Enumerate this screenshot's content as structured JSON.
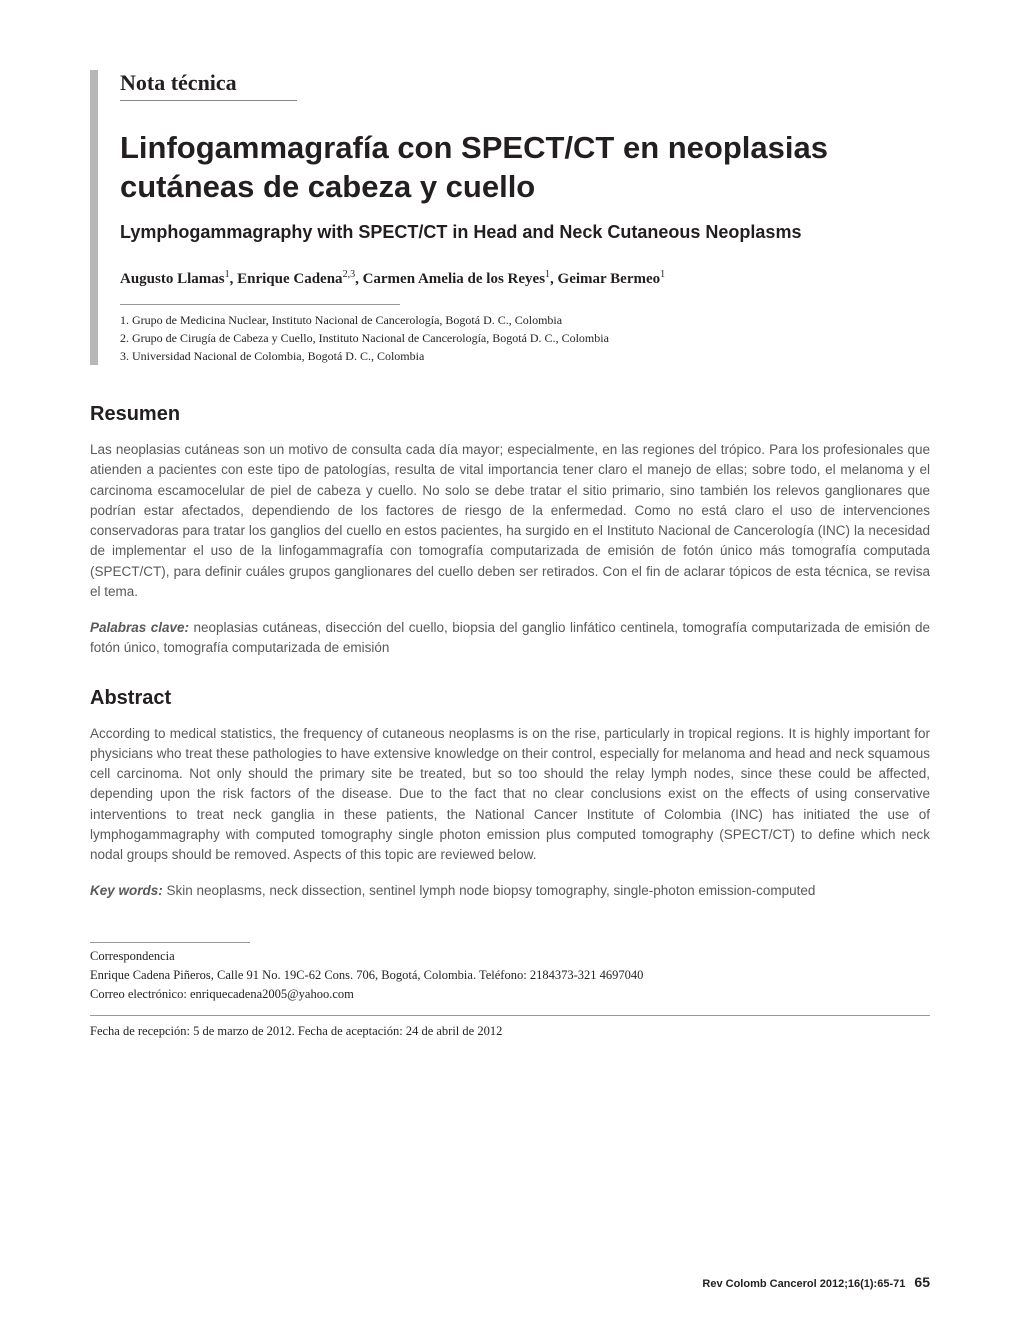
{
  "section_label": "Nota técnica",
  "title": "Linfogammagrafía con SPECT/CT en neoplasias cutáneas de cabeza y cuello",
  "subtitle": "Lymphogammagraphy with SPECT/CT in Head and Neck Cutaneous Neoplasms",
  "authors_html": "Augusto Llamas<sup>1</sup>, Enrique Cadena<sup>2,3</sup>, Carmen Amelia de los Reyes<sup>1</sup>, Geimar Bermeo<sup>1</sup>",
  "affiliations": [
    "1.  Grupo de Medicina Nuclear, Instituto Nacional de Cancerología, Bogotá D. C., Colombia",
    "2.  Grupo de Cirugía de Cabeza y Cuello, Instituto Nacional de Cancerología, Bogotá D. C., Colombia",
    "3.  Universidad Nacional de Colombia, Bogotá D. C., Colombia"
  ],
  "resumen": {
    "heading": "Resumen",
    "body": "Las neoplasias cutáneas son un motivo de consulta cada día mayor; especialmente, en las regiones del trópico. Para los profesionales que atienden a pacientes con este tipo de patologías, resulta de vital importancia tener claro el manejo de ellas; sobre todo, el melanoma y el carcinoma escamocelular de piel de cabeza y cuello. No solo se debe tratar el sitio primario, sino también los relevos ganglionares que podrían estar afectados, dependiendo de los factores de riesgo de la enfermedad. Como no está claro el uso de intervenciones conservadoras para tratar los ganglios del cuello en estos pacientes, ha surgido en el Instituto Nacional de Cancerología (INC) la necesidad de implementar el uso de la linfogammagrafía con tomografía computarizada de emisión de fotón único más tomografía computada (SPECT/CT), para definir cuáles grupos ganglionares del cuello deben ser retirados. Con el fin de aclarar tópicos de esta técnica, se revisa el tema.",
    "kw_label": "Palabras clave:",
    "kw_text": " neoplasias cutáneas, disección del cuello, biopsia del ganglio linfático centinela, tomografía computarizada de emisión de fotón único, tomografía computarizada de emisión"
  },
  "abstract": {
    "heading": "Abstract",
    "body": "According to medical statistics, the frequency of cutaneous neoplasms is on the rise, particularly in tropical regions. It is highly important for physicians who treat these pathologies to have extensive knowledge on their control, especially for melanoma and head and neck squamous cell carcinoma. Not only should the primary site be treated, but so too should the relay lymph nodes, since these could be affected, depending upon the risk factors of the disease. Due to the fact that no clear conclusions exist on the effects of using conservative interventions to treat neck ganglia in these patients, the National Cancer Institute of Colombia (INC) has initiated the use of lymphogammagraphy with computed tomography single photon emission plus computed tomography (SPECT/CT) to define which neck nodal groups should be removed. Aspects of this topic are reviewed below.",
    "kw_label": "Key words:",
    "kw_text": " Skin neoplasms, neck dissection, sentinel lymph node biopsy tomography, single-photon emission-computed"
  },
  "correspondence": {
    "label": "Correspondencia",
    "line1": "Enrique Cadena Piñeros, Calle 91 No. 19C-62 Cons. 706, Bogotá, Colombia. Teléfono: 2184373-321 4697040",
    "line2": "Correo electrónico: enriquecadena2005@yahoo.com"
  },
  "dates": "Fecha de recepción: 5 de marzo de 2012. Fecha de aceptación: 24 de abril de 2012",
  "citation": "Rev Colomb Cancerol 2012;16(1):65-71",
  "page_number": "65"
}
